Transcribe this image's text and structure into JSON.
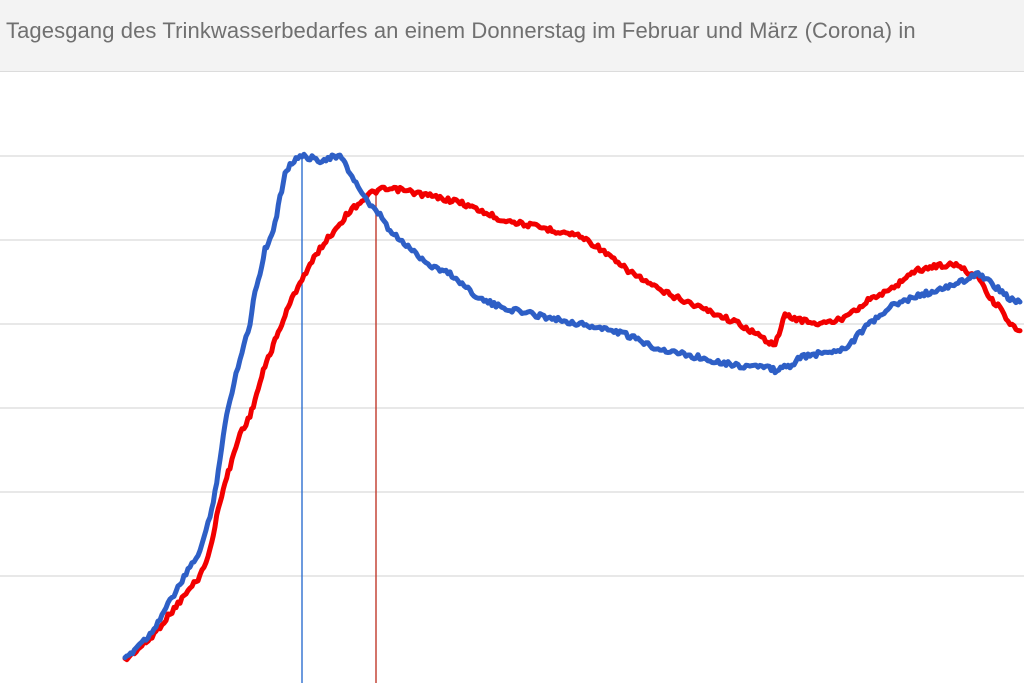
{
  "title": "Tagesgang des Trinkwasserbedarfes an einem Donnerstag im Februar und März (Corona) in",
  "colors": {
    "background": "#ffffff",
    "title_bar": "#f3f3f3",
    "gridline": "#d9d9d9",
    "blue_series": "#2e5fc6",
    "red_series": "#f20000",
    "blue_marker": "#2e6fd0",
    "red_marker": "#c0392b"
  },
  "chart_data": {
    "type": "line",
    "title": "Tagesgang des Trinkwasserbedarfes an einem Donnerstag im Februar und März (Corona) in",
    "xlabel": "",
    "ylabel": "",
    "x_range": [
      0,
      1024
    ],
    "y_range": [
      0,
      6.1
    ],
    "grid": "horizontal",
    "gridlines": [
      1,
      2,
      3,
      4,
      5,
      6
    ],
    "series": [
      {
        "color": "blue",
        "x": [
          125,
          140,
          150,
          160,
          170,
          180,
          190,
          200,
          210,
          215,
          220,
          225,
          230,
          240,
          250,
          255,
          260,
          265,
          270,
          275,
          280,
          285,
          290,
          300,
          310,
          320,
          330,
          340,
          345,
          350,
          360,
          370,
          380,
          390,
          400,
          410,
          420,
          430,
          440,
          450,
          460,
          470,
          480,
          490,
          500,
          520,
          540,
          560,
          580,
          600,
          620,
          640,
          660,
          680,
          700,
          720,
          740,
          760,
          775,
          790,
          800,
          820,
          840,
          850,
          860,
          870,
          880,
          890,
          900,
          910,
          920,
          940,
          960,
          970,
          980,
          990,
          1000,
          1010,
          1020
        ],
        "y": [
          0.0,
          0.2,
          0.3,
          0.5,
          0.7,
          0.9,
          1.1,
          1.3,
          1.7,
          2.0,
          2.4,
          2.8,
          3.1,
          3.6,
          4.0,
          4.4,
          4.6,
          4.9,
          5.0,
          5.2,
          5.5,
          5.8,
          5.9,
          6.0,
          5.98,
          5.95,
          5.98,
          6.0,
          5.9,
          5.8,
          5.6,
          5.4,
          5.3,
          5.1,
          5.0,
          4.9,
          4.8,
          4.7,
          4.65,
          4.6,
          4.5,
          4.4,
          4.3,
          4.25,
          4.2,
          4.15,
          4.1,
          4.05,
          4.0,
          3.95,
          3.9,
          3.8,
          3.7,
          3.65,
          3.6,
          3.55,
          3.5,
          3.5,
          3.45,
          3.5,
          3.6,
          3.65,
          3.7,
          3.75,
          3.9,
          4.0,
          4.1,
          4.2,
          4.25,
          4.3,
          4.35,
          4.4,
          4.5,
          4.55,
          4.6,
          4.5,
          4.4,
          4.3,
          4.25
        ]
      },
      {
        "color": "red",
        "x": [
          125,
          140,
          150,
          160,
          170,
          180,
          190,
          200,
          210,
          215,
          220,
          225,
          230,
          240,
          250,
          255,
          260,
          265,
          270,
          275,
          280,
          285,
          290,
          300,
          310,
          320,
          330,
          340,
          350,
          360,
          370,
          380,
          390,
          400,
          420,
          440,
          460,
          480,
          500,
          520,
          540,
          560,
          580,
          600,
          620,
          640,
          660,
          680,
          700,
          720,
          740,
          760,
          775,
          785,
          800,
          820,
          840,
          850,
          860,
          870,
          880,
          890,
          900,
          910,
          920,
          940,
          960,
          970,
          980,
          990,
          1000,
          1010,
          1020
        ],
        "y": [
          0.0,
          0.15,
          0.25,
          0.4,
          0.55,
          0.7,
          0.85,
          1.0,
          1.3,
          1.6,
          1.9,
          2.1,
          2.3,
          2.7,
          2.9,
          3.1,
          3.3,
          3.5,
          3.65,
          3.8,
          3.95,
          4.1,
          4.25,
          4.5,
          4.7,
          4.9,
          5.05,
          5.2,
          5.35,
          5.45,
          5.55,
          5.6,
          5.6,
          5.6,
          5.55,
          5.5,
          5.45,
          5.35,
          5.25,
          5.2,
          5.15,
          5.1,
          5.05,
          4.9,
          4.7,
          4.55,
          4.4,
          4.3,
          4.2,
          4.1,
          4.0,
          3.85,
          3.75,
          4.1,
          4.05,
          4.0,
          4.05,
          4.15,
          4.2,
          4.3,
          4.35,
          4.4,
          4.5,
          4.6,
          4.65,
          4.7,
          4.7,
          4.6,
          4.55,
          4.3,
          4.2,
          4.0,
          3.9
        ]
      }
    ],
    "markers": [
      {
        "color": "blue",
        "x": 302
      },
      {
        "color": "red",
        "x": 376
      }
    ]
  }
}
